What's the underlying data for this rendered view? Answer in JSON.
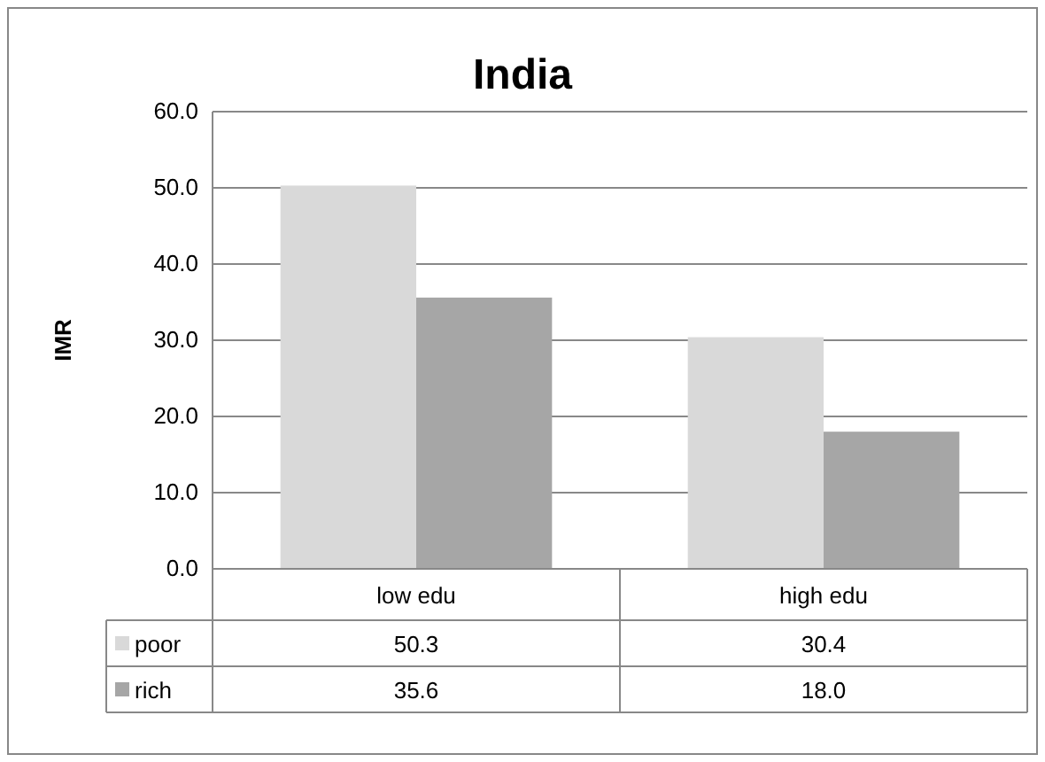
{
  "chart_data": {
    "type": "bar",
    "title": "India",
    "ylabel": "IMR",
    "categories": [
      "low edu",
      "high edu"
    ],
    "series": [
      {
        "name": "poor",
        "color": "#d9d9d9",
        "values": [
          50.3,
          30.4
        ],
        "value_labels": [
          "50.3",
          "30.4"
        ]
      },
      {
        "name": "rich",
        "color": "#a6a6a6",
        "values": [
          35.6,
          18.0
        ],
        "value_labels": [
          "35.6",
          "18.0"
        ]
      }
    ],
    "ylim": [
      0,
      60
    ],
    "yticks": [
      {
        "value": 0,
        "label": "0.0"
      },
      {
        "value": 10,
        "label": "10.0"
      },
      {
        "value": 20,
        "label": "20.0"
      },
      {
        "value": 30,
        "label": "30.0"
      },
      {
        "value": 40,
        "label": "40.0"
      },
      {
        "value": 50,
        "label": "50.0"
      },
      {
        "value": 60,
        "label": "60.0"
      }
    ],
    "grid": "y",
    "legend": "bottom"
  }
}
